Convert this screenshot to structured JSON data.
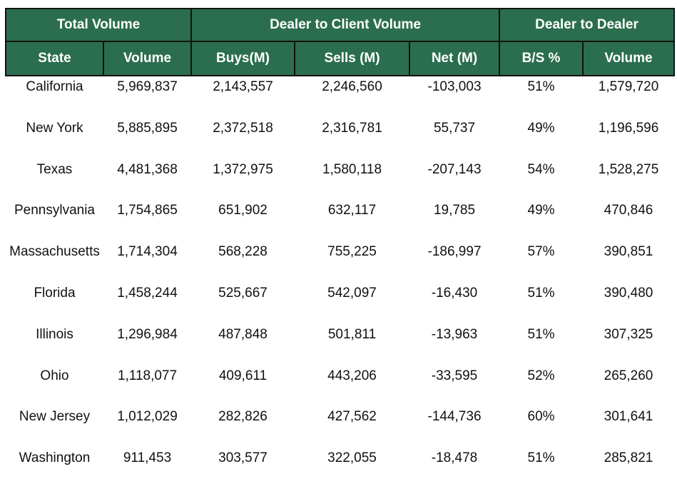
{
  "colors": {
    "header_bg": "#2b6e4f",
    "header_text": "#ffffff",
    "border": "#111111",
    "body_text": "#111111"
  },
  "header": {
    "groups": [
      "Total Volume",
      "Dealer to Client Volume",
      "Dealer to Dealer"
    ],
    "columns": [
      "State",
      "Volume",
      "Buys(M)",
      "Sells (M)",
      "Net (M)",
      "B/S %",
      "Volume"
    ]
  },
  "rows": [
    [
      "California",
      "5,969,837",
      "2,143,557",
      "2,246,560",
      "-103,003",
      "51%",
      "1,579,720"
    ],
    [
      "New York",
      "5,885,895",
      "2,372,518",
      "2,316,781",
      "55,737",
      "49%",
      "1,196,596"
    ],
    [
      "Texas",
      "4,481,368",
      "1,372,975",
      "1,580,118",
      "-207,143",
      "54%",
      "1,528,275"
    ],
    [
      "Pennsylvania",
      "1,754,865",
      "651,902",
      "632,117",
      "19,785",
      "49%",
      "470,846"
    ],
    [
      "Massachusetts",
      "1,714,304",
      "568,228",
      "755,225",
      "-186,997",
      "57%",
      "390,851"
    ],
    [
      "Florida",
      "1,458,244",
      "525,667",
      "542,097",
      "-16,430",
      "51%",
      "390,480"
    ],
    [
      "Illinois",
      "1,296,984",
      "487,848",
      "501,811",
      "-13,963",
      "51%",
      "307,325"
    ],
    [
      "Ohio",
      "1,118,077",
      "409,611",
      "443,206",
      "-33,595",
      "52%",
      "265,260"
    ],
    [
      "New Jersey",
      "1,012,029",
      "282,826",
      "427,562",
      "-144,736",
      "60%",
      "301,641"
    ],
    [
      "Washington",
      "911,453",
      "303,577",
      "322,055",
      "-18,478",
      "51%",
      "285,821"
    ]
  ]
}
